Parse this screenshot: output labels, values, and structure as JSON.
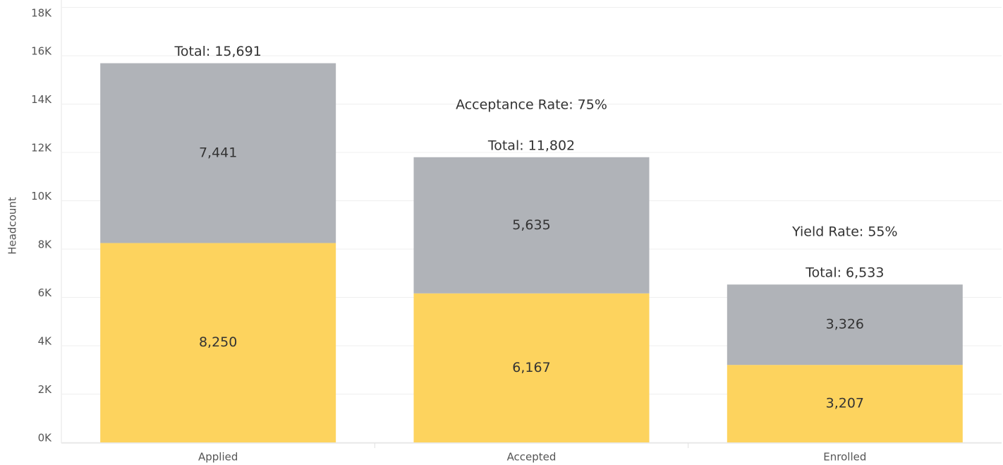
{
  "chart_data": {
    "type": "stacked_bar",
    "y_label": "Headcount",
    "categories": [
      "Applied",
      "Accepted",
      "Enrolled"
    ],
    "series": [
      {
        "color": "#fdd35e",
        "values": [
          8250,
          6167,
          3207
        ],
        "value_labels": [
          "8,250",
          "6,167",
          "3,207"
        ]
      },
      {
        "color": "#b0b3b8",
        "values": [
          7441,
          5635,
          3326
        ],
        "value_labels": [
          "7,441",
          "5,635",
          "3,326"
        ]
      }
    ],
    "totals": [
      15691,
      11802,
      6533
    ],
    "total_labels": [
      "Total: 15,691",
      "Total: 11,802",
      "Total: 6,533"
    ],
    "annotations": [
      null,
      "Acceptance Rate: 75%",
      "Yield Rate: 55%"
    ],
    "ylim": [
      0,
      18000
    ],
    "yticks": [
      {
        "value": 0,
        "label": "0K"
      },
      {
        "value": 2000,
        "label": "2K"
      },
      {
        "value": 4000,
        "label": "4K"
      },
      {
        "value": 6000,
        "label": "6K"
      },
      {
        "value": 8000,
        "label": "8K"
      },
      {
        "value": 10000,
        "label": "10K"
      },
      {
        "value": 12000,
        "label": "12K"
      },
      {
        "value": 14000,
        "label": "14K"
      },
      {
        "value": 16000,
        "label": "16K"
      },
      {
        "value": 18000,
        "label": "18K"
      }
    ],
    "grid": true
  }
}
